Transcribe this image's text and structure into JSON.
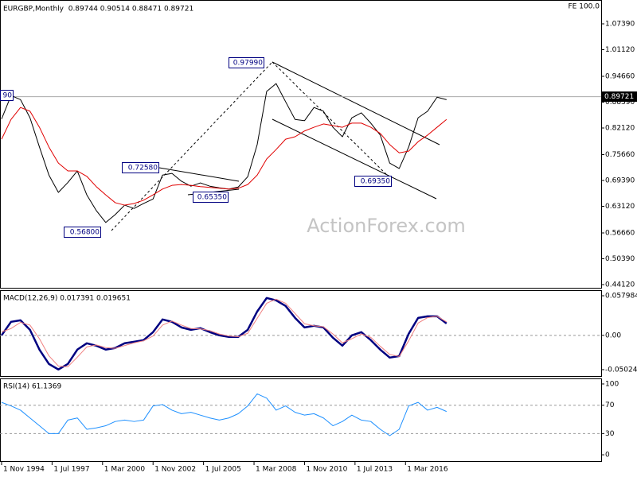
{
  "chart_data": [
    {
      "type": "line",
      "title": "EURGBP,Monthly  0.89744 0.90514 0.88471 0.89721",
      "indicator_label": "FE 100.0",
      "watermark": "ActionForex.com",
      "x": [
        "1994-11",
        "1995-05",
        "1995-11",
        "1996-05",
        "1996-11",
        "1997-05",
        "1997-11",
        "1998-05",
        "1998-11",
        "1999-05",
        "1999-11",
        "2000-05",
        "2000-11",
        "2001-05",
        "2001-11",
        "2002-05",
        "2002-11",
        "2003-05",
        "2003-11",
        "2004-05",
        "2004-11",
        "2005-05",
        "2005-11",
        "2006-05",
        "2006-11",
        "2007-05",
        "2007-11",
        "2008-05",
        "2008-11",
        "2009-05",
        "2009-11",
        "2010-05",
        "2010-11",
        "2011-05",
        "2011-11",
        "2012-05",
        "2012-11",
        "2013-05",
        "2013-11",
        "2014-05",
        "2014-11",
        "2015-05",
        "2015-11",
        "2016-05",
        "2016-11",
        "2017-05",
        "2017-11",
        "2018-05"
      ],
      "xlim": [
        "1994-10",
        "2026-07"
      ],
      "series": [
        {
          "color": "#000000",
          "values": [
            0.843,
            0.9,
            0.89,
            0.846,
            0.775,
            0.707,
            0.665,
            0.689,
            0.717,
            0.659,
            0.621,
            0.592,
            0.611,
            0.634,
            0.626,
            0.638,
            0.649,
            0.707,
            0.711,
            0.692,
            0.68,
            0.688,
            0.68,
            0.676,
            0.673,
            0.678,
            0.703,
            0.781,
            0.91,
            0.929,
            0.885,
            0.842,
            0.839,
            0.871,
            0.862,
            0.823,
            0.8,
            0.846,
            0.858,
            0.833,
            0.804,
            0.736,
            0.723,
            0.775,
            0.846,
            0.862,
            0.896,
            0.89
          ]
        },
        {
          "color": "#e00000",
          "values": [
            0.794,
            0.842,
            0.871,
            0.862,
            0.823,
            0.775,
            0.736,
            0.717,
            0.717,
            0.704,
            0.679,
            0.659,
            0.64,
            0.634,
            0.638,
            0.646,
            0.659,
            0.673,
            0.682,
            0.684,
            0.682,
            0.679,
            0.677,
            0.675,
            0.673,
            0.675,
            0.684,
            0.707,
            0.746,
            0.769,
            0.794,
            0.8,
            0.814,
            0.823,
            0.831,
            0.827,
            0.823,
            0.833,
            0.833,
            0.823,
            0.808,
            0.781,
            0.761,
            0.765,
            0.788,
            0.804,
            0.823,
            0.842
          ]
        }
      ],
      "ylim": [
        0.4335,
        1.1279
      ],
      "yticks": [
        {
          "value": 1.0739,
          "label": "1.07390"
        },
        {
          "value": 1.0112,
          "label": "1.01120"
        },
        {
          "value": 0.9466,
          "label": "0.94660"
        },
        {
          "value": 0.8839,
          "label": "0.88390"
        },
        {
          "value": 0.8212,
          "label": "0.82120"
        },
        {
          "value": 0.7566,
          "label": "0.75660"
        },
        {
          "value": 0.6939,
          "label": "0.69390"
        },
        {
          "value": 0.6312,
          "label": "0.63120"
        },
        {
          "value": 0.5666,
          "label": "0.56660"
        },
        {
          "value": 0.5039,
          "label": "0.50390"
        },
        {
          "value": 0.4412,
          "label": "0.44120"
        }
      ],
      "last_price": 0.89721,
      "annotations": [
        "0.97990",
        "0.72580",
        "0.65350",
        "0.69350",
        "0.56800",
        "90"
      ]
    },
    {
      "type": "line",
      "title": "MACD(12,26,9) 0.017391 0.019651",
      "series": [
        {
          "color": "#000080",
          "values": [
            0,
            0.0198,
            0.0221,
            0.0081,
            -0.0209,
            -0.0419,
            -0.05,
            -0.0419,
            -0.0209,
            -0.0116,
            -0.0151,
            -0.0209,
            -0.0186,
            -0.0116,
            -0.0093,
            -0.007,
            0.0047,
            0.0233,
            0.0198,
            0.0116,
            0.0081,
            0.0105,
            0.0047,
            0,
            -0.0023,
            -0.0023,
            0.0081,
            0.0349,
            0.0547,
            0.0512,
            0.0431,
            0.0256,
            0.0116,
            0.014,
            0.0116,
            -0.0035,
            -0.0151,
            0,
            0.0047,
            -0.007,
            -0.0209,
            -0.0326,
            -0.0303,
            0.0023,
            0.0256,
            0.0279,
            0.0279,
            0.0174
          ]
        },
        {
          "color": "#f08080",
          "values": [
            0.005,
            0.01,
            0.019,
            0.015,
            -0.005,
            -0.03,
            -0.045,
            -0.046,
            -0.032,
            -0.017,
            -0.014,
            -0.018,
            -0.019,
            -0.015,
            -0.011,
            -0.008,
            -0.001,
            0.015,
            0.021,
            0.015,
            0.01,
            0.0095,
            0.007,
            0.002,
            -0.001,
            -0.002,
            0.003,
            0.025,
            0.047,
            0.053,
            0.047,
            0.032,
            0.017,
            0.014,
            0.0125,
            0.002,
            -0.011,
            -0.005,
            0.002,
            -0.003,
            -0.016,
            -0.028,
            -0.031,
            -0.008,
            0.018,
            0.026,
            0.028,
            0.0197
          ]
        }
      ],
      "ylim": [
        -0.0596,
        0.065
      ],
      "yticks": [
        0.057984,
        {
          "value": 0,
          "label": "0.00"
        },
        -0.050241
      ],
      "levels": [
        0
      ]
    },
    {
      "type": "line",
      "title": "RSI(14) 61.1369",
      "series": [
        {
          "color": "#1e90ff",
          "values": [
            74,
            69,
            63,
            52,
            41,
            30,
            30,
            49,
            52,
            36,
            38,
            41,
            47,
            49,
            47,
            49,
            69,
            71,
            63,
            58,
            60,
            56,
            52,
            49,
            52,
            58,
            69,
            86,
            80,
            63,
            69,
            60,
            56,
            58,
            52,
            41,
            47,
            56,
            49,
            47,
            36,
            27,
            36,
            69,
            74,
            63,
            67,
            61.1
          ]
        }
      ],
      "ylim": [
        -8.9,
        106.7
      ],
      "yticks": [
        100,
        70,
        30,
        0
      ],
      "levels": [
        70,
        30
      ],
      "xticks": [
        {
          "value": "1994-11",
          "label": "1 Nov 1994"
        },
        {
          "value": "1997-07",
          "label": "1 Jul 1997"
        },
        {
          "value": "2000-03",
          "label": "1 Mar 2000"
        },
        {
          "value": "2002-11",
          "label": "1 Nov 2002"
        },
        {
          "value": "2005-07",
          "label": "1 Jul 2005"
        },
        {
          "value": "2008-03",
          "label": "1 Mar 2008"
        },
        {
          "value": "2010-11",
          "label": "1 Nov 2010"
        },
        {
          "value": "2013-07",
          "label": "1 Jul 2013"
        },
        {
          "value": "2016-03",
          "label": "1 Mar 2016"
        }
      ]
    }
  ]
}
